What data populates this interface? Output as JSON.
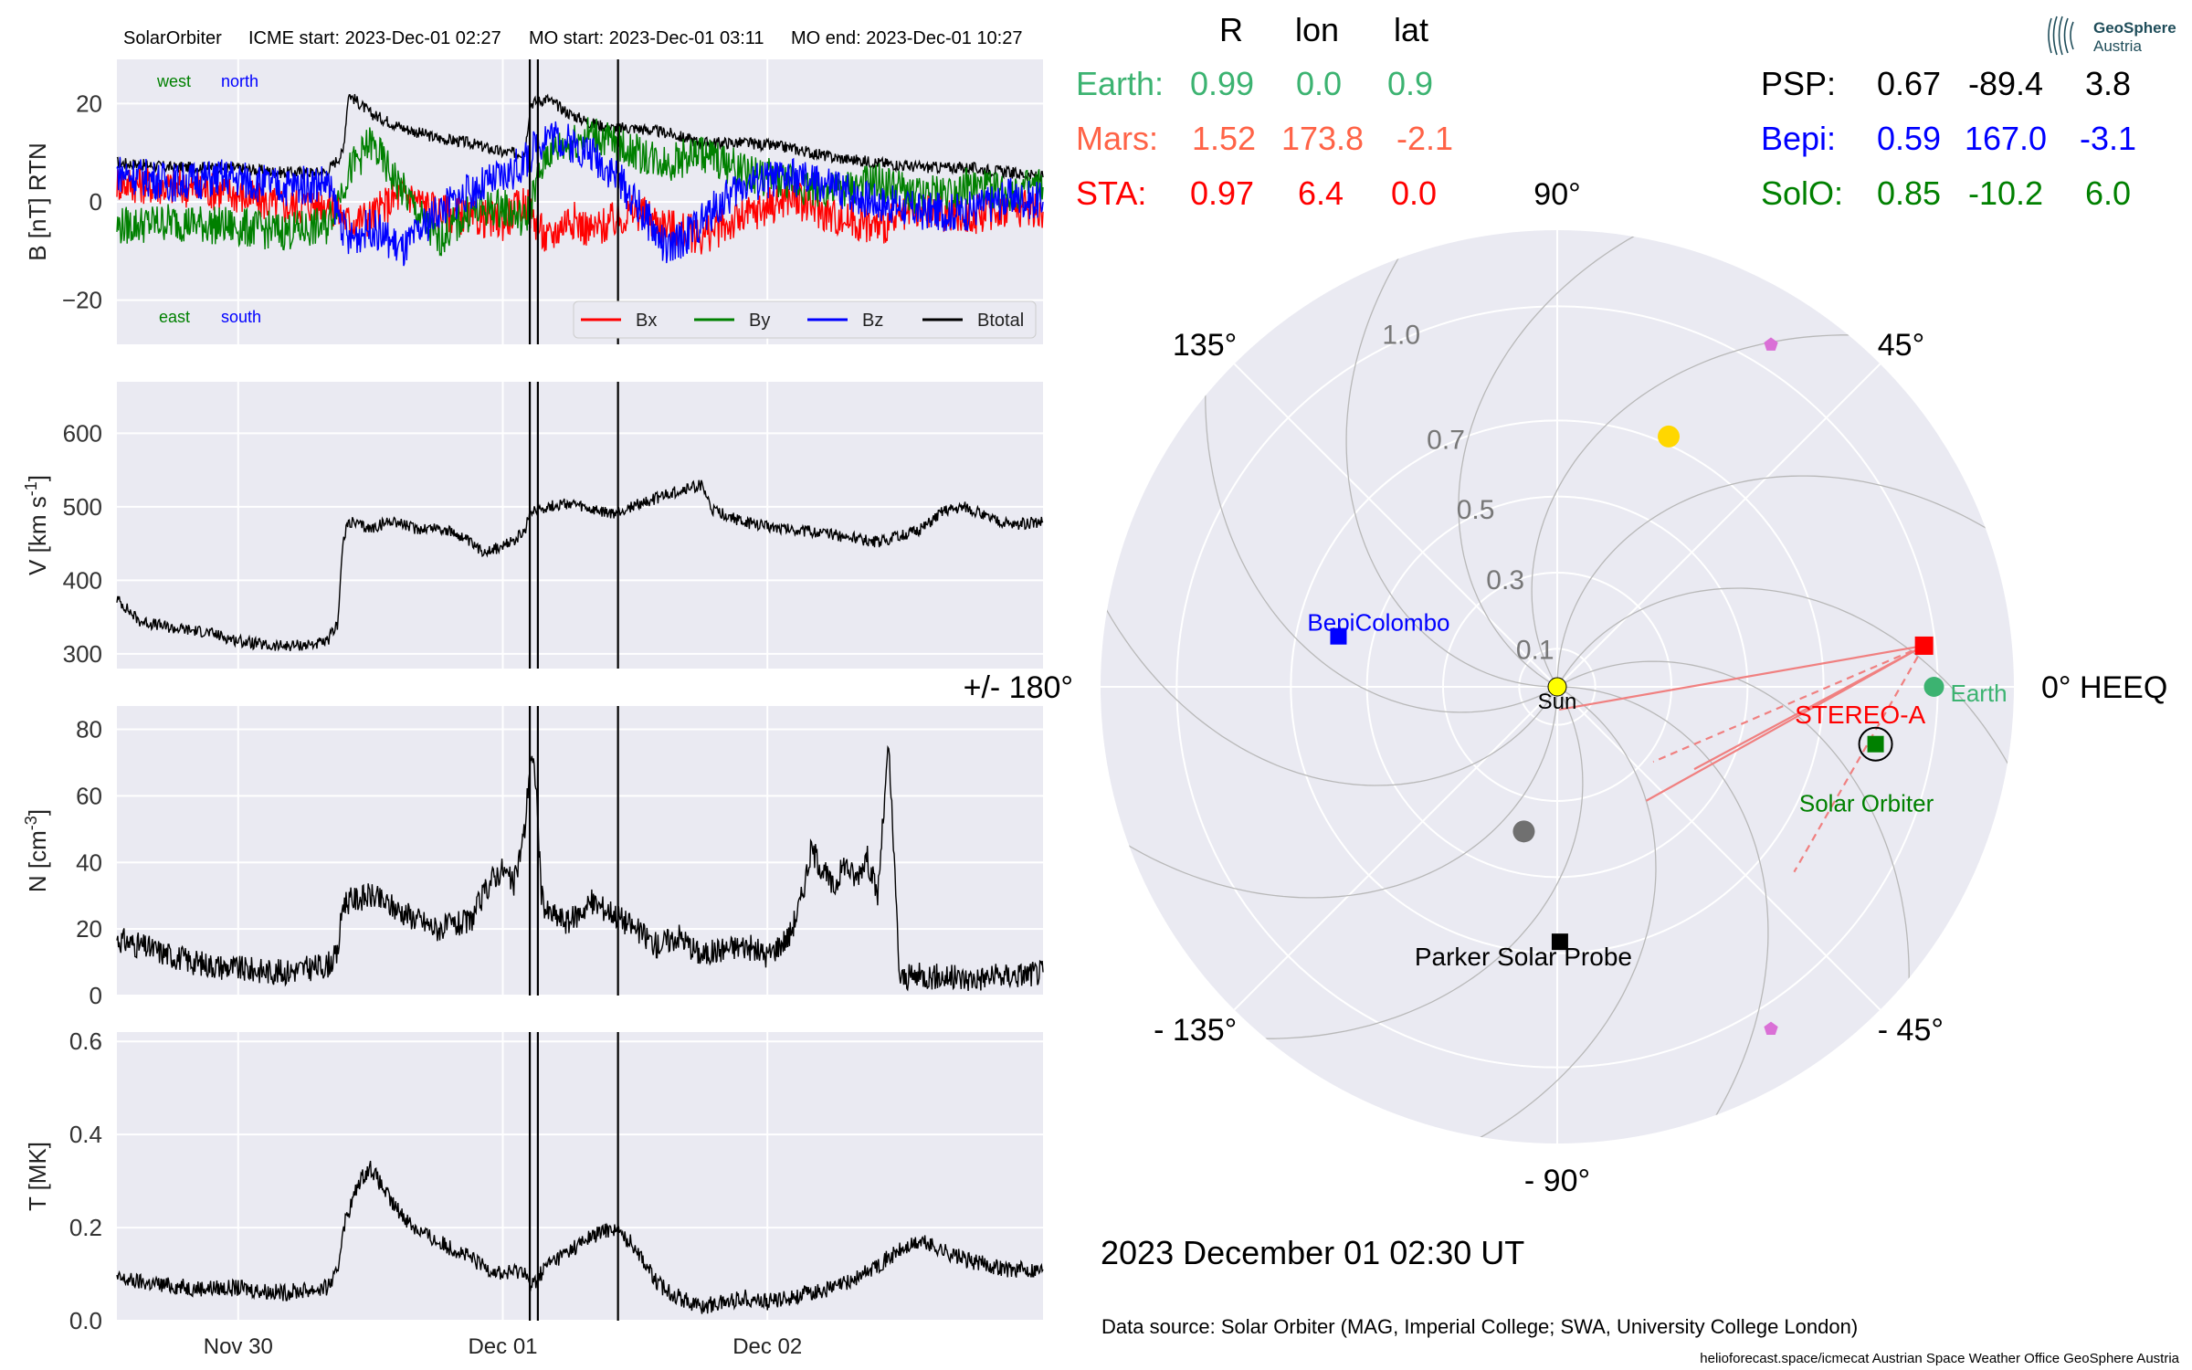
{
  "header": {
    "spacecraft": "SolarOrbiter",
    "icme_start": "ICME start: 2023-Dec-01 02:27",
    "mo_start": "MO start: 2023-Dec-01 03:11",
    "mo_end": "MO end: 2023-Dec-01 10:27"
  },
  "colors": {
    "panel_bg": "#eaeaf2",
    "bx": "#ff0000",
    "by": "#008000",
    "bz": "#0000ff",
    "btotal": "#000000",
    "earth": "#3cb371",
    "mars": "#ff6347",
    "sta": "#ff0000",
    "psp": "#000000",
    "bepi": "#0000ff",
    "solo": "#008000",
    "sun": "#ffff00",
    "planet_yellow": "#ffd700",
    "planet_grey": "#707070",
    "planet_violet": "#da70d6",
    "sta_lines": "#f08080"
  },
  "time_axis": {
    "start_hours": -35,
    "end_hours": 49,
    "ticks": [
      {
        "label": "Nov 30",
        "hours": -24
      },
      {
        "label": "Dec 01",
        "hours": 0
      },
      {
        "label": "Dec 02",
        "hours": 24
      }
    ]
  },
  "event_lines_hours": [
    2.45,
    3.18,
    10.45
  ],
  "chart_data": [
    {
      "type": "line",
      "panel": "magnetic_field",
      "ylabel": "B [nT] RTN",
      "ylim": [
        -29,
        29
      ],
      "yticks": [
        -20,
        0,
        20
      ],
      "corner_labels": {
        "top_left": "west",
        "top_right": "north",
        "bottom_left": "east",
        "bottom_right": "south"
      },
      "legend": [
        "Bx",
        "By",
        "Bz",
        "Btotal"
      ],
      "legend_position": "lower right",
      "series": [
        {
          "name": "Btotal",
          "x_hours": [
            -35,
            -30,
            -25,
            -20,
            -16,
            -14.5,
            -14,
            -12,
            -9,
            -6,
            -3,
            0,
            2,
            2.5,
            4,
            6,
            8,
            10,
            12,
            15,
            18,
            22,
            26,
            30,
            34,
            38,
            42,
            46,
            49
          ],
          "y": [
            8,
            7,
            7,
            6,
            6,
            10,
            22,
            18,
            15,
            13,
            12,
            10,
            10,
            20,
            21,
            18,
            16,
            15,
            15,
            14,
            12,
            12,
            11,
            9,
            8,
            7,
            7,
            6,
            5
          ]
        },
        {
          "name": "Bx",
          "x_hours": [
            -35,
            -30,
            -25,
            -20,
            -16,
            -14,
            -12,
            -9,
            -6,
            -3,
            0,
            2,
            4,
            6,
            8,
            10,
            12,
            15,
            18,
            22,
            26,
            30,
            34,
            38,
            42,
            46,
            49
          ],
          "y": [
            4,
            3,
            2,
            -1,
            0,
            -4,
            -3,
            2,
            -2,
            -3,
            -4,
            0,
            -8,
            -3,
            -6,
            -4,
            -2,
            -5,
            -7,
            -3,
            1,
            -3,
            -5,
            -2,
            -3,
            -1,
            -2
          ]
        },
        {
          "name": "By",
          "x_hours": [
            -35,
            -30,
            -25,
            -20,
            -16,
            -14,
            -12,
            -9,
            -6,
            -3,
            0,
            2,
            4,
            6,
            8,
            10,
            12,
            15,
            18,
            22,
            26,
            30,
            34,
            38,
            42,
            46,
            49
          ],
          "y": [
            -5,
            -4,
            -5,
            -6,
            -5,
            6,
            12,
            2,
            -8,
            -2,
            -1,
            -4,
            10,
            12,
            14,
            12,
            10,
            8,
            10,
            6,
            4,
            2,
            4,
            1,
            3,
            2,
            3
          ]
        },
        {
          "name": "Bz",
          "x_hours": [
            -35,
            -30,
            -25,
            -20,
            -16,
            -14,
            -12,
            -9,
            -6,
            -3,
            0,
            2,
            4,
            6,
            8,
            10,
            12,
            15,
            18,
            22,
            26,
            30,
            34,
            38,
            42,
            46,
            49
          ],
          "y": [
            6,
            4,
            5,
            3,
            4,
            -8,
            -5,
            -10,
            -2,
            2,
            5,
            8,
            14,
            12,
            10,
            6,
            0,
            -10,
            -4,
            4,
            5,
            3,
            0,
            -2,
            -2,
            1,
            0
          ]
        }
      ]
    },
    {
      "type": "line",
      "panel": "velocity",
      "ylabel": "V [km s$^{-1}$]",
      "ylim": [
        280,
        670
      ],
      "yticks": [
        300,
        400,
        500,
        600
      ],
      "series": [
        {
          "name": "V",
          "x_hours": [
            -35,
            -33,
            -30,
            -27,
            -24,
            -21,
            -18,
            -16,
            -15,
            -14.5,
            -14,
            -12,
            -10,
            -8,
            -6,
            -4,
            -2,
            0,
            2,
            2.5,
            4,
            6,
            8,
            10,
            12,
            14,
            16,
            18,
            19,
            20,
            22,
            26,
            30,
            34,
            36,
            38,
            40,
            42,
            44,
            46,
            49
          ],
          "y": [
            375,
            345,
            335,
            330,
            318,
            310,
            312,
            315,
            340,
            450,
            480,
            470,
            482,
            470,
            472,
            462,
            440,
            445,
            465,
            495,
            500,
            505,
            495,
            490,
            502,
            512,
            522,
            530,
            495,
            490,
            478,
            470,
            462,
            452,
            460,
            470,
            495,
            500,
            485,
            475,
            480
          ]
        }
      ]
    },
    {
      "type": "line",
      "panel": "density",
      "ylabel": "N [cm$^{-3}$]",
      "ylim": [
        0,
        87
      ],
      "yticks": [
        0,
        20,
        40,
        60,
        80
      ],
      "series": [
        {
          "name": "N",
          "x_hours": [
            -35,
            -32,
            -28,
            -24,
            -20,
            -16,
            -15,
            -14.5,
            -12,
            -9,
            -6,
            -3,
            -1,
            0,
            1,
            2,
            2.5,
            3,
            3.5,
            4,
            6,
            8,
            10,
            12,
            14,
            16,
            18,
            20,
            22,
            24,
            26,
            27,
            28,
            29,
            30,
            31,
            32,
            33,
            34,
            35,
            36,
            38,
            42,
            46,
            49
          ],
          "y": [
            17,
            14,
            10,
            8,
            7,
            9,
            12,
            28,
            30,
            25,
            20,
            22,
            35,
            38,
            33,
            50,
            72,
            65,
            30,
            25,
            22,
            28,
            25,
            20,
            15,
            18,
            12,
            14,
            15,
            12,
            18,
            28,
            44,
            38,
            32,
            40,
            35,
            42,
            30,
            75,
            5,
            6,
            5,
            6,
            7
          ]
        }
      ]
    },
    {
      "type": "line",
      "panel": "temperature",
      "ylabel": "T [MK]",
      "ylim": [
        0,
        0.62
      ],
      "yticks": [
        0.0,
        0.2,
        0.4,
        0.6
      ],
      "series": [
        {
          "name": "T",
          "x_hours": [
            -35,
            -32,
            -28,
            -24,
            -20,
            -16,
            -15,
            -14.5,
            -13,
            -12,
            -10,
            -8,
            -6,
            -4,
            -2,
            0,
            2,
            2.5,
            4,
            6,
            8,
            10,
            12,
            14,
            16,
            18,
            20,
            22,
            24,
            26,
            28,
            30,
            32,
            34,
            36,
            38,
            40,
            42,
            44,
            46,
            49
          ],
          "y": [
            0.09,
            0.08,
            0.07,
            0.07,
            0.06,
            0.07,
            0.1,
            0.2,
            0.3,
            0.33,
            0.25,
            0.2,
            0.17,
            0.15,
            0.12,
            0.1,
            0.11,
            0.07,
            0.12,
            0.15,
            0.18,
            0.2,
            0.16,
            0.08,
            0.05,
            0.03,
            0.04,
            0.05,
            0.04,
            0.05,
            0.06,
            0.07,
            0.09,
            0.12,
            0.15,
            0.17,
            0.15,
            0.13,
            0.12,
            0.11,
            0.11
          ]
        }
      ]
    },
    {
      "type": "scatter",
      "panel": "polar_positions",
      "radial_ticks": [
        "0.1",
        "0.3",
        "0.5",
        "0.7",
        "1.0"
      ],
      "radial_tick_values": [
        0.1,
        0.3,
        0.5,
        0.7,
        1.0
      ],
      "radial_max": 1.2,
      "angle_labels": [
        {
          "text": "0° HEEQ",
          "deg": 0
        },
        {
          "text": "45°",
          "deg": 45
        },
        {
          "text": "90°",
          "deg": 90
        },
        {
          "text": "135°",
          "deg": 135
        },
        {
          "text": "+/- 180°",
          "deg": 180
        },
        {
          "text": "- 135°",
          "deg": -135
        },
        {
          "text": "- 90°",
          "deg": -90
        },
        {
          "text": "- 45°",
          "deg": -45
        }
      ],
      "bodies": [
        {
          "label": "Sun",
          "r": 0.0,
          "lon": 0.0,
          "shape": "circle",
          "color": "#ffff00",
          "size": 20
        },
        {
          "label": "Earth",
          "r": 0.99,
          "lon": 0.0,
          "shape": "circle",
          "color": "#3cb371",
          "size": 22
        },
        {
          "label": "STEREO-A",
          "r": 0.97,
          "lon": 6.4,
          "shape": "square",
          "color": "#ff0000",
          "size": 20
        },
        {
          "label": "Solar Orbiter",
          "r": 0.85,
          "lon": -10.2,
          "shape": "square",
          "color": "#008000",
          "size": 18
        },
        {
          "label": "BepiColombo",
          "r": 0.59,
          "lon": 167.0,
          "shape": "square",
          "color": "#0000ff",
          "size": 18
        },
        {
          "label": "Parker Solar Probe",
          "r": 0.67,
          "lon": -89.4,
          "shape": "square",
          "color": "#000000",
          "size": 18
        },
        {
          "label": "",
          "r": 0.72,
          "lon": 66.0,
          "shape": "circle",
          "color": "#ffd700",
          "size": 24
        },
        {
          "label": "",
          "r": 0.39,
          "lon": -103.0,
          "shape": "circle",
          "color": "#707070",
          "size": 24
        },
        {
          "label": "",
          "r": 1.06,
          "lon": 58.0,
          "shape": "pentagon",
          "color": "#da70d6",
          "size": 16
        },
        {
          "label": "",
          "r": 1.06,
          "lon": -58.0,
          "shape": "pentagon",
          "color": "#da70d6",
          "size": 16
        }
      ]
    }
  ],
  "positions_table": {
    "headers": [
      "R",
      "lon",
      "lat"
    ],
    "rows_left": [
      {
        "name": "Earth:",
        "r": "0.99",
        "lon": "0.0",
        "lat": "0.9"
      },
      {
        "name": "Mars:",
        "r": "1.52",
        "lon": "173.8",
        "lat": "-2.1"
      },
      {
        "name": "STA:",
        "r": "0.97",
        "lon": "6.4",
        "lat": "0.0"
      }
    ],
    "rows_right": [
      {
        "name": "PSP:",
        "r": "0.67",
        "lon": "-89.4",
        "lat": "3.8"
      },
      {
        "name": "Bepi:",
        "r": "0.59",
        "lon": "167.0",
        "lat": "-3.1"
      },
      {
        "name": "SolO:",
        "r": "0.85",
        "lon": "-10.2",
        "lat": "6.0"
      }
    ]
  },
  "date_label": "2023 December 01  02:30 UT",
  "data_source": "Data source: Solar Orbiter (MAG, Imperial College; SWA, University College London)",
  "footer": "helioforecast.space/icmecat   Austrian Space Weather Office   GeoSphere Austria",
  "logo": {
    "line1": "GeoSphere",
    "line2": "Austria"
  }
}
